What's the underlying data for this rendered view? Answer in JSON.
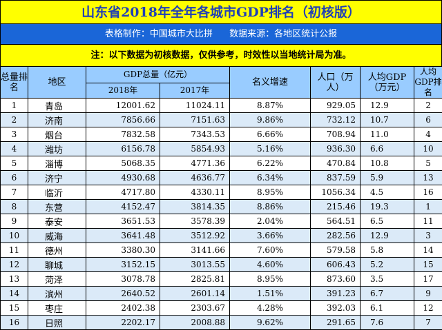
{
  "title": "山东省2018年全年各城市GDP排名（初核版）",
  "info": {
    "maker": "表格制作：中国城市大比拼",
    "source": "数据来源：各地区统计公报"
  },
  "note": "注：以下数据为初核数据，仅供参考，时效性以当地统计局为准。",
  "headers": {
    "rank": "总量排名",
    "region": "地区",
    "gdp_total": "GDP总量（亿元）",
    "year_2018": "2018年",
    "year_2017": "2017年",
    "growth": "名义增速",
    "population": "人口（万人）",
    "per_capita": "人均GDP（万元）",
    "per_capita_rank": "人均GDP排名"
  },
  "rows": [
    {
      "rank": "1",
      "region": "青岛",
      "gdp2018": "12001.62",
      "gdp2017": "11024.11",
      "growth": "8.87%",
      "pop": "929.05",
      "pc": "12.9",
      "pcrank": "2"
    },
    {
      "rank": "2",
      "region": "济南",
      "gdp2018": "7856.66",
      "gdp2017": "7151.63",
      "growth": "9.86%",
      "pop": "732.12",
      "pc": "10.7",
      "pcrank": "6"
    },
    {
      "rank": "3",
      "region": "烟台",
      "gdp2018": "7832.58",
      "gdp2017": "7343.53",
      "growth": "6.66%",
      "pop": "708.94",
      "pc": "11.0",
      "pcrank": "4"
    },
    {
      "rank": "4",
      "region": "潍坊",
      "gdp2018": "6156.78",
      "gdp2017": "5854.93",
      "growth": "5.16%",
      "pop": "936.30",
      "pc": "6.6",
      "pcrank": "10"
    },
    {
      "rank": "5",
      "region": "淄博",
      "gdp2018": "5068.35",
      "gdp2017": "4771.36",
      "growth": "6.22%",
      "pop": "470.84",
      "pc": "10.8",
      "pcrank": "5"
    },
    {
      "rank": "6",
      "region": "济宁",
      "gdp2018": "4930.68",
      "gdp2017": "4636.77",
      "growth": "6.34%",
      "pop": "837.59",
      "pc": "5.9",
      "pcrank": "13"
    },
    {
      "rank": "7",
      "region": "临沂",
      "gdp2018": "4717.80",
      "gdp2017": "4330.11",
      "growth": "8.95%",
      "pop": "1056.34",
      "pc": "4.5",
      "pcrank": "16"
    },
    {
      "rank": "8",
      "region": "东营",
      "gdp2018": "4152.47",
      "gdp2017": "3814.35",
      "growth": "8.86%",
      "pop": "215.46",
      "pc": "19.3",
      "pcrank": "1"
    },
    {
      "rank": "9",
      "region": "泰安",
      "gdp2018": "3651.53",
      "gdp2017": "3578.39",
      "growth": "2.04%",
      "pop": "564.51",
      "pc": "6.5",
      "pcrank": "11"
    },
    {
      "rank": "10",
      "region": "威海",
      "gdp2018": "3641.48",
      "gdp2017": "3512.92",
      "growth": "3.66%",
      "pop": "282.56",
      "pc": "12.9",
      "pcrank": "3"
    },
    {
      "rank": "11",
      "region": "德州",
      "gdp2018": "3380.30",
      "gdp2017": "3141.66",
      "growth": "7.60%",
      "pop": "579.58",
      "pc": "5.8",
      "pcrank": "14"
    },
    {
      "rank": "12",
      "region": "聊城",
      "gdp2018": "3152.15",
      "gdp2017": "3013.55",
      "growth": "4.60%",
      "pop": "606.43",
      "pc": "5.2",
      "pcrank": "15"
    },
    {
      "rank": "13",
      "region": "菏泽",
      "gdp2018": "3078.78",
      "gdp2017": "2825.81",
      "growth": "8.95%",
      "pop": "873.60",
      "pc": "3.5",
      "pcrank": "17"
    },
    {
      "rank": "14",
      "region": "滨州",
      "gdp2018": "2640.52",
      "gdp2017": "2601.14",
      "growth": "1.51%",
      "pop": "391.23",
      "pc": "6.7",
      "pcrank": "9"
    },
    {
      "rank": "15",
      "region": "枣庄",
      "gdp2018": "2402.38",
      "gdp2017": "2303.67",
      "growth": "4.28%",
      "pop": "392.03",
      "pc": "6.1",
      "pcrank": "12"
    },
    {
      "rank": "16",
      "region": "日照",
      "gdp2018": "2202.17",
      "gdp2017": "2008.88",
      "growth": "9.62%",
      "pop": "291.65",
      "pc": "7.6",
      "pcrank": "7"
    }
  ]
}
